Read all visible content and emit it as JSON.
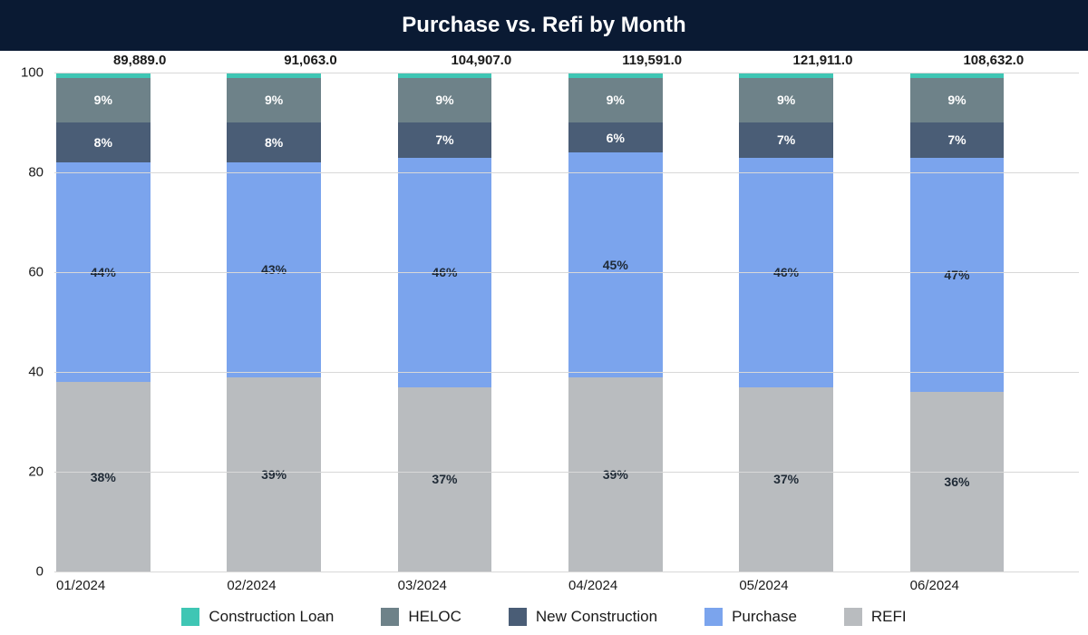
{
  "header": {
    "title": "Purchase vs. Refi by Month",
    "bg_color": "#0a1a33",
    "text_color": "#ffffff"
  },
  "chart": {
    "type": "stacked-bar-100pct",
    "background_color": "#ffffff",
    "ylim": [
      0,
      100
    ],
    "yticks": [
      0,
      20,
      40,
      60,
      80,
      100
    ],
    "grid_color": "#d8d8d8",
    "axis_text_color": "#1a1a1a",
    "bar_width_pct": 55,
    "categories": [
      "01/2024",
      "02/2024",
      "03/2024",
      "04/2024",
      "05/2024",
      "06/2024"
    ],
    "totals": [
      "89,889.0",
      "91,063.0",
      "104,907.0",
      "119,591.0",
      "121,911.0",
      "108,632.0"
    ],
    "series": [
      {
        "name": "REFI",
        "color": "#b9bcbf",
        "label_color": "#1f2a36",
        "values": [
          38,
          39,
          37,
          39,
          37,
          36
        ]
      },
      {
        "name": "Purchase",
        "color": "#7ba4ed",
        "label_color": "#1f2a36",
        "values": [
          44,
          43,
          46,
          45,
          46,
          47
        ]
      },
      {
        "name": "New Construction",
        "color": "#4a5d76",
        "label_color": "#ffffff",
        "values": [
          8,
          8,
          7,
          6,
          7,
          7
        ]
      },
      {
        "name": "HELOC",
        "color": "#6e8289",
        "label_color": "#ffffff",
        "values": [
          9,
          9,
          9,
          9,
          9,
          9
        ]
      },
      {
        "name": "Construction Loan",
        "color": "#3fc6b4",
        "label_color": "#1f2a36",
        "values": [
          1,
          1,
          1,
          1,
          1,
          1
        ]
      }
    ],
    "segment_label_suffix": "%",
    "segment_label_min_value": 3,
    "legend_order": [
      "Construction Loan",
      "HELOC",
      "New Construction",
      "Purchase",
      "REFI"
    ],
    "title_fontsize": 24,
    "axis_fontsize": 15,
    "total_fontsize": 15,
    "segment_fontsize": 14,
    "legend_fontsize": 17
  }
}
